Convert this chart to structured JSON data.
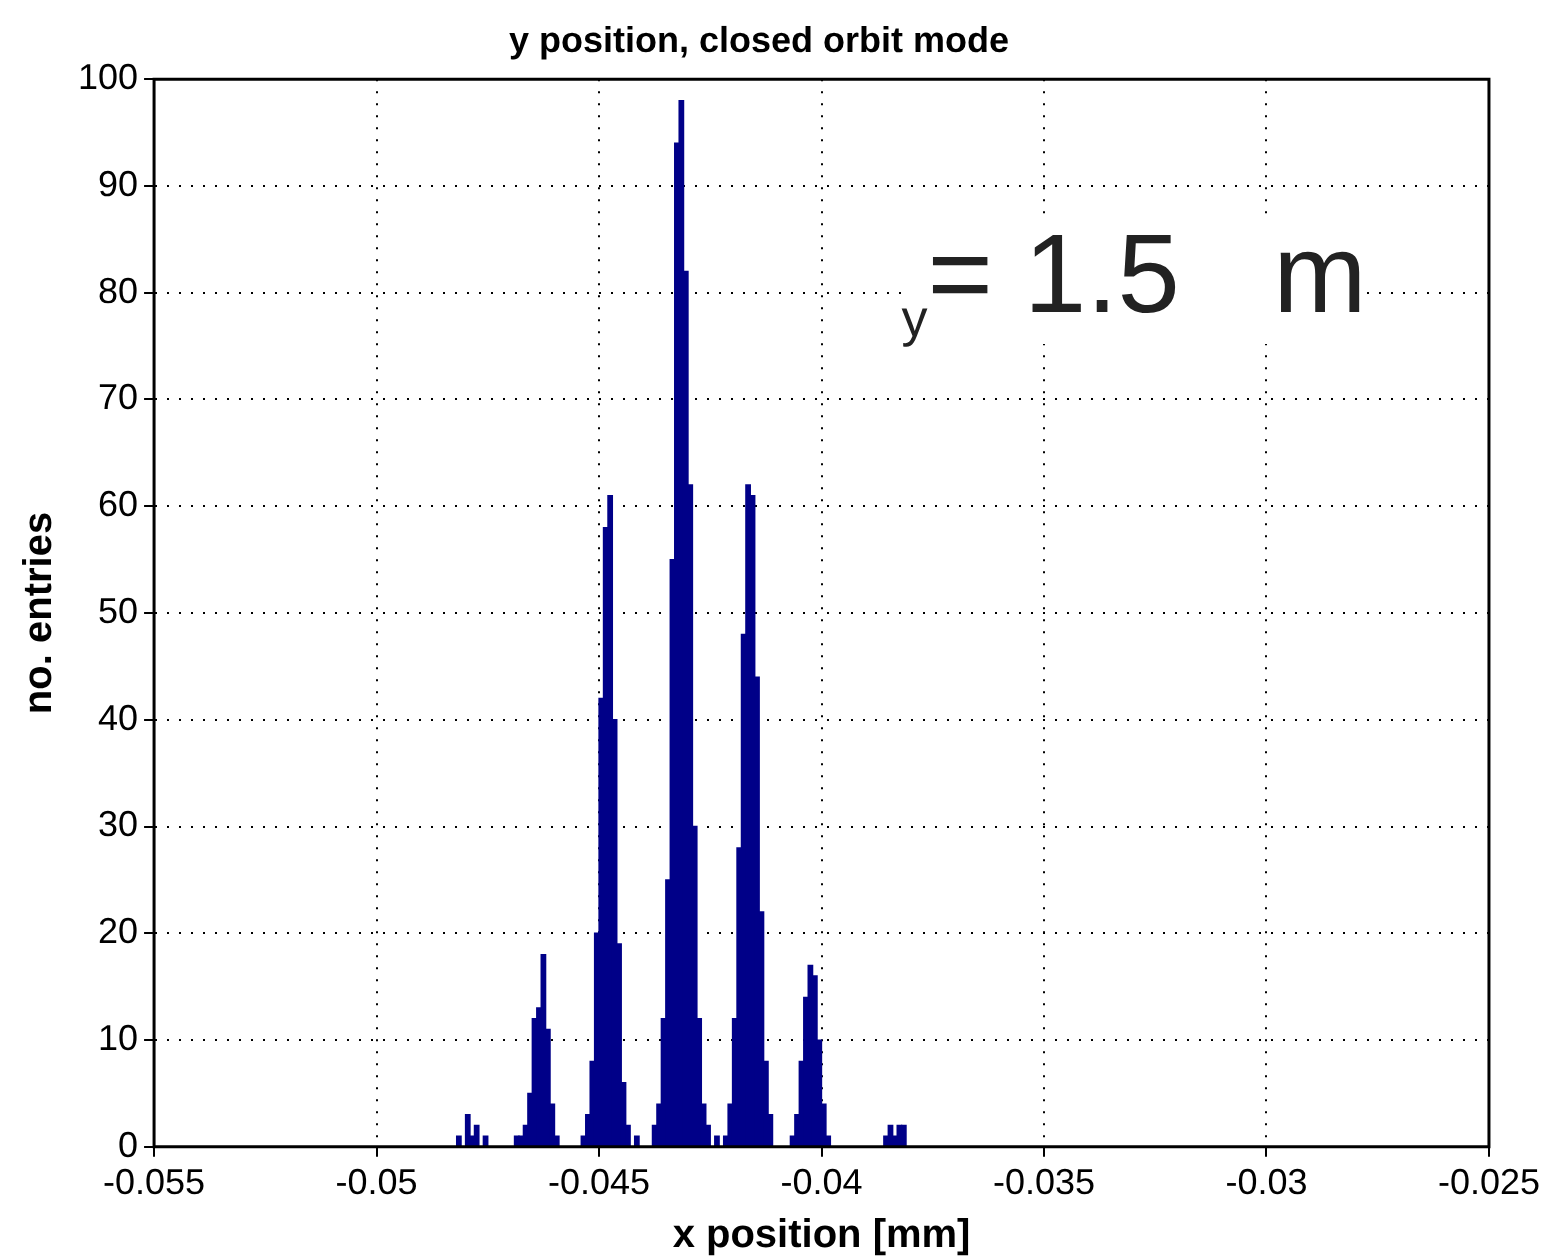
{
  "chart_data": {
    "type": "histogram",
    "title": "y position, closed orbit mode",
    "xlabel": "x position [mm]",
    "ylabel": "no. entries",
    "annotations": [
      "$_{y}$= 1.5   m"
    ],
    "color": "#000088",
    "bins": [
      -0.0485,
      -0.0484,
      -0.0483,
      -0.0482,
      -0.0481,
      -0.048,
      -0.0479,
      -0.0478,
      -0.0477,
      -0.0476,
      -0.0475,
      -0.0474,
      -0.0473,
      -0.0472,
      -0.0471,
      -0.047,
      -0.0469,
      -0.0468,
      -0.0467,
      -0.0466,
      -0.0465,
      -0.0464,
      -0.0463,
      -0.0462,
      -0.0461,
      -0.046,
      -0.0459,
      -0.0458,
      -0.0457,
      -0.0456,
      -0.0455,
      -0.0454,
      -0.0453,
      -0.0452,
      -0.0451,
      -0.045,
      -0.0449,
      -0.0448,
      -0.0447,
      -0.0446,
      -0.0445,
      -0.0444,
      -0.0443,
      -0.0442,
      -0.0441,
      -0.044,
      -0.0439,
      -0.0438,
      -0.0437,
      -0.0436,
      -0.0435,
      -0.0434,
      -0.0433,
      -0.0432,
      -0.0431,
      -0.043,
      -0.0429,
      -0.0428,
      -0.0427,
      -0.0426,
      -0.0425,
      -0.0424,
      -0.0423,
      -0.0422,
      -0.0421,
      -0.042,
      -0.0419,
      -0.0418,
      -0.0417,
      -0.0416,
      -0.0415,
      -0.0414,
      -0.0413,
      -0.0412,
      -0.0411,
      -0.041,
      -0.0409,
      -0.0408,
      -0.0407,
      -0.0406,
      -0.0405,
      -0.0404,
      -0.0403,
      -0.0402,
      -0.0401,
      -0.04,
      -0.0399,
      -0.0398,
      -0.0397,
      -0.0396,
      -0.0395,
      -0.0394,
      -0.0393,
      -0.0392,
      -0.0391,
      -0.039,
      -0.0389,
      -0.0388,
      -0.0387,
      -0.0386,
      -0.0385,
      -0.0384,
      -0.0383,
      -0.0382,
      -0.0381,
      -0.038,
      -0.0379,
      -0.0378,
      -0.0377,
      -0.0376,
      -0.0375
    ],
    "values": [
      0,
      0,
      0,
      1,
      0,
      3,
      1,
      2,
      0,
      1,
      0,
      0,
      0,
      0,
      0,
      0,
      1,
      1,
      2,
      5,
      12,
      13,
      18,
      11,
      4,
      1,
      0,
      0,
      0,
      0,
      0,
      1,
      3,
      8,
      20,
      42,
      58,
      61,
      40,
      19,
      6,
      2,
      0,
      1,
      0,
      0,
      0,
      2,
      4,
      12,
      25,
      55,
      94,
      98,
      82,
      62,
      30,
      12,
      4,
      2,
      0,
      1,
      0,
      1,
      4,
      12,
      28,
      48,
      62,
      61,
      44,
      22,
      8,
      3,
      0,
      0,
      0,
      0,
      1,
      3,
      8,
      14,
      17,
      16,
      10,
      4,
      1,
      0,
      0,
      0,
      0,
      0,
      0,
      0,
      0,
      0,
      0,
      0,
      0,
      1,
      2,
      1,
      2,
      2,
      0,
      0,
      0,
      0,
      0,
      0
    ],
    "xlim": [
      -0.055,
      -0.025
    ],
    "xticks": [
      -0.055,
      -0.05,
      -0.045,
      -0.04,
      -0.035,
      -0.03,
      -0.025
    ],
    "ylim": [
      0,
      100
    ],
    "yticks": [
      0,
      10,
      20,
      30,
      40,
      50,
      60,
      70,
      80,
      90,
      100
    ],
    "grid": true,
    "legend": false
  }
}
